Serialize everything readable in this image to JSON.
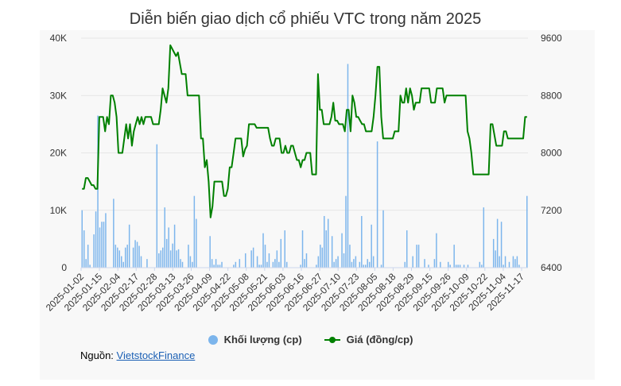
{
  "chart_data": {
    "type": "bar+line",
    "title": "Diễn biến giao dịch cổ phiếu VTC trong năm 2025",
    "source_label": "Nguồn:",
    "source_link": "VietstockFinance",
    "x_ticks": [
      "2025-01-02",
      "2025-01-15",
      "2025-02-04",
      "2025-02-17",
      "2025-02-28",
      "2025-03-13",
      "2025-03-26",
      "2025-04-09",
      "2025-04-22",
      "2025-05-08",
      "2025-05-21",
      "2025-06-03",
      "2025-06-16",
      "2025-06-27",
      "2025-07-10",
      "2025-07-23",
      "2025-08-05",
      "2025-08-18",
      "2025-08-29",
      "2025-09-15",
      "2025-09-26",
      "2025-10-09",
      "2025-10-22",
      "2025-11-04",
      "2025-11-17"
    ],
    "y_left": {
      "ticks": [
        "0",
        "10K",
        "20K",
        "30K",
        "40K"
      ],
      "range": [
        0,
        40000
      ]
    },
    "y_right": {
      "ticks": [
        "6400",
        "7200",
        "8000",
        "8800",
        "9600"
      ],
      "range": [
        6400,
        9600
      ]
    },
    "grid": true,
    "legend_position": "bottom",
    "series": [
      {
        "name": "Khối lượng (cp)",
        "kind": "bar",
        "axis": "left",
        "color": "#7cb5ec",
        "values": [
          10000,
          6500,
          1500,
          4000,
          500,
          0,
          5800,
          9800,
          26500,
          7000,
          8000,
          8000,
          9500,
          0,
          0,
          0,
          12000,
          4000,
          3500,
          3000,
          2000,
          1000,
          3500,
          4000,
          7500,
          0,
          3500,
          4800,
          4500,
          3800,
          2000,
          0,
          0,
          1500,
          0,
          0,
          0,
          0,
          21500,
          2500,
          3000,
          3500,
          10500,
          5000,
          7000,
          3000,
          4200,
          7500,
          3000,
          3200,
          1500,
          1000,
          0,
          0,
          4000,
          2000,
          1000,
          12500,
          8500,
          0,
          0,
          0,
          0,
          0,
          0,
          5500,
          1500,
          500,
          1500,
          500,
          500,
          1000,
          0,
          0,
          0,
          0,
          0,
          500,
          1000,
          0,
          1500,
          0,
          0,
          2500,
          0,
          0,
          3000,
          3500,
          0,
          2000,
          500,
          500,
          6000,
          4000,
          1000,
          2500,
          0,
          1000,
          1500,
          3000,
          1000,
          5000,
          0,
          6500,
          1000,
          0,
          0,
          0,
          0,
          0,
          0,
          500,
          6500,
          1500,
          2500,
          0,
          0,
          0,
          0,
          500,
          2000,
          4000,
          3500,
          9000,
          6500,
          8500,
          0,
          5500,
          1000,
          1500,
          2000,
          0,
          6000,
          2500,
          12500,
          35500,
          4000,
          1000,
          1500,
          2000,
          0,
          1000,
          9000,
          500,
          500,
          1500,
          1000,
          7500,
          2000,
          0,
          22000,
          0,
          500,
          10000,
          0,
          0,
          0,
          0,
          0,
          0,
          0,
          0,
          0,
          0,
          1000,
          6500,
          0,
          0,
          2000,
          0,
          4000,
          4000,
          0,
          0,
          1500,
          0,
          500,
          0,
          0,
          1500,
          6000,
          0,
          1000,
          0,
          0,
          0,
          1000,
          500,
          0,
          4000,
          500,
          500,
          500,
          0,
          500,
          0,
          500,
          0,
          0,
          0,
          0,
          0,
          1000,
          500,
          10500,
          0,
          0,
          0,
          0,
          5000,
          3000,
          8500,
          2000,
          8000,
          500,
          2000,
          0,
          1000,
          0,
          2000,
          1500,
          2000,
          500,
          0,
          0,
          0,
          12500
        ]
      },
      {
        "name": "Giá (đồng/cp)",
        "kind": "line",
        "axis": "right",
        "color": "#008000",
        "values": [
          7500,
          7500,
          7650,
          7650,
          7600,
          7550,
          7550,
          7500,
          7500,
          8500,
          8500,
          8500,
          8300,
          8500,
          8400,
          8800,
          8800,
          8700,
          8500,
          8000,
          8000,
          8000,
          8200,
          8400,
          8200,
          8400,
          8100,
          8300,
          8400,
          8500,
          8400,
          8500,
          8400,
          8500,
          8500,
          8500,
          8500,
          8400,
          8400,
          8400,
          8400,
          8600,
          8900,
          8800,
          8700,
          8900,
          9500,
          9450,
          9400,
          9350,
          9400,
          9250,
          9100,
          9100,
          9100,
          8800,
          8800,
          8800,
          8800,
          8800,
          8800,
          8800,
          8200,
          8200,
          7800,
          7900,
          7600,
          7100,
          7250,
          7600,
          7600,
          7600,
          7600,
          7600,
          7400,
          7400,
          7500,
          7800,
          7800,
          8000,
          8200,
          8200,
          8200,
          8200,
          7950,
          8050,
          8100,
          8400,
          8400,
          8400,
          8400,
          8350,
          8350,
          8350,
          8350,
          8350,
          8350,
          8350,
          8200,
          8100,
          8100,
          8200,
          8200,
          8200,
          8000,
          8000,
          8100,
          8000,
          8000,
          8100,
          8100,
          8000,
          7900,
          7900,
          7800,
          7900,
          7900,
          8000,
          8000,
          8000,
          7700,
          7700,
          7700,
          9100,
          8600,
          8600,
          8400,
          8400,
          8400,
          8400,
          8500,
          8700,
          8450,
          8450,
          8400,
          8400,
          8400,
          8300,
          8600,
          8600,
          8300,
          8800,
          8700,
          8500,
          8500,
          8450,
          8400,
          8400,
          8300,
          8300,
          8300,
          8300,
          8500,
          8800,
          9200,
          9200,
          8500,
          8200,
          8200,
          8200,
          8200,
          8200,
          8200,
          8300,
          8300,
          8300,
          8800,
          8700,
          8700,
          8900,
          8700,
          8900,
          8800,
          8600,
          8700,
          8700,
          8700,
          8900,
          8900,
          8900,
          8900,
          8900,
          8700,
          8700,
          8700,
          8900,
          8900,
          8900,
          8900,
          8700,
          8800,
          8800,
          8800,
          8800,
          8800,
          8800,
          8800,
          8800,
          8800,
          8800,
          8800,
          8300,
          8200,
          8000,
          7700,
          7700,
          7700,
          7700,
          7700,
          7700,
          7700,
          7700,
          7700,
          8400,
          8400,
          8250,
          8100,
          8100,
          8100,
          8100,
          8300,
          8300,
          8200,
          8200,
          8200,
          8200,
          8200,
          8200,
          8200,
          8200,
          8200,
          8500,
          8500
        ]
      }
    ]
  }
}
